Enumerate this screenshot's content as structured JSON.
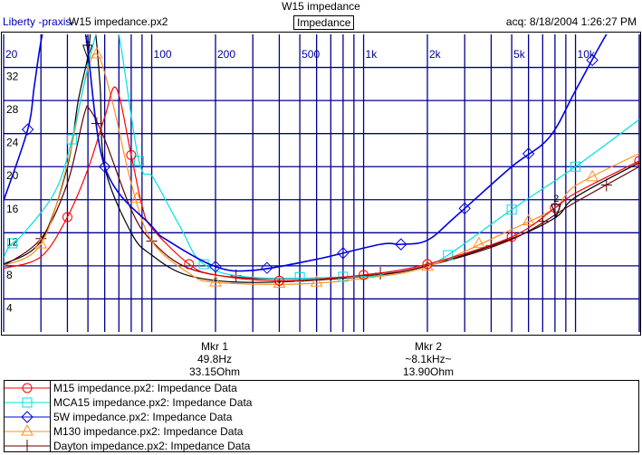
{
  "header": {
    "title": "W15 impedance",
    "brand": "Liberty -praxis-",
    "file": "W15 impedance.px2",
    "mode": "Impedance",
    "acq": "acq: 8/18/2004 1:26:27 PM"
  },
  "markers": [
    {
      "label": "Mkr 1",
      "freq": "49.8Hz",
      "value": "33.15Ohm",
      "f": 49.8,
      "ohm": 33.15,
      "id": "1"
    },
    {
      "label": "Mkr 2",
      "freq": "~8.1kHz~",
      "value": "13.90Ohm",
      "f": 8100,
      "ohm": 13.9,
      "id": "2"
    }
  ],
  "chart_data": {
    "type": "line",
    "title": "W15 impedance",
    "xscale": "log",
    "xlim": [
      20,
      20000
    ],
    "ylim": [
      0,
      36
    ],
    "x_ticks": [
      {
        "v": 20,
        "t": "20"
      },
      {
        "v": 100,
        "t": "100"
      },
      {
        "v": 200,
        "t": "200"
      },
      {
        "v": 500,
        "t": "500"
      },
      {
        "v": 1000,
        "t": "1k"
      },
      {
        "v": 2000,
        "t": "2k"
      },
      {
        "v": 5000,
        "t": "5k"
      },
      {
        "v": 10000,
        "t": "10k"
      }
    ],
    "y_ticks": [
      {
        "v": 4,
        "t": "4"
      },
      {
        "v": 8,
        "t": "8"
      },
      {
        "v": 12,
        "t": "12"
      },
      {
        "v": 16,
        "t": "16"
      },
      {
        "v": 20,
        "t": "20"
      },
      {
        "v": 24,
        "t": "24"
      },
      {
        "v": 28,
        "t": "28"
      },
      {
        "v": 32,
        "t": "32"
      }
    ],
    "grid": true,
    "series": [
      {
        "name": "M15 impedance.px2:  Impedance Data",
        "color": "#ff0000",
        "marker": "circle",
        "x": [
          20,
          30,
          40,
          50,
          60,
          68,
          80,
          90,
          100,
          150,
          200,
          400,
          1000,
          2000,
          5000,
          8000,
          10000,
          20000
        ],
        "y": [
          7.7,
          9.1,
          13.9,
          19.7,
          26,
          29.5,
          21.4,
          15.3,
          12.6,
          8.2,
          6.9,
          6.2,
          6.9,
          8.2,
          11.5,
          15,
          16.8,
          20.7
        ],
        "marks": [
          40,
          80,
          150,
          400,
          1000,
          2000,
          5000,
          8000,
          20000
        ]
      },
      {
        "name": "MCA15 impedance.px2:  Impedance Data",
        "color": "#00e0e0",
        "marker": "square",
        "x": [
          20,
          21.5,
          25,
          35,
          42,
          52,
          62,
          70,
          87,
          102,
          137,
          176,
          300,
          1000,
          1300,
          2000,
          2500,
          5000,
          10000,
          20000
        ],
        "y": [
          9,
          10.5,
          12,
          17,
          23.3,
          34,
          40,
          36,
          20.7,
          18.6,
          12.6,
          8.2,
          6.6,
          6.7,
          7.2,
          8.2,
          9.3,
          14.8,
          20,
          25.7
        ],
        "marks": [
          22,
          42,
          87,
          176,
          500,
          800,
          2500,
          5000,
          10000
        ]
      },
      {
        "name": "5W impedance.px2:  Impedance Data",
        "color": "#0000e0",
        "marker": "diamond",
        "x": [
          20,
          26,
          28,
          31,
          38,
          48,
          60,
          100,
          120,
          200,
          300,
          600,
          1200,
          1500,
          2000,
          2700,
          5000,
          7500,
          10000,
          14000,
          20000
        ],
        "y": [
          15.9,
          24.5,
          30,
          37,
          45,
          37,
          20,
          12.8,
          11,
          7.9,
          7.45,
          8.8,
          10.6,
          10.6,
          11.1,
          13.9,
          20,
          23.5,
          29.2,
          36,
          42
        ],
        "marks": [
          26,
          60,
          200,
          350,
          800,
          1500,
          3000,
          6000,
          12000
        ]
      },
      {
        "name": "M130 impedance.px2:  Impedance Data",
        "color": "#ff9020",
        "marker": "triangle",
        "x": [
          20,
          30,
          40,
          48,
          55,
          65,
          80,
          100,
          150,
          200,
          500,
          1000,
          2000,
          5000,
          8000,
          10000,
          20000
        ],
        "y": [
          8,
          10.6,
          20.3,
          30,
          33.6,
          28,
          18,
          11,
          7.1,
          6,
          5.8,
          6.5,
          7.9,
          12.4,
          15,
          17.7,
          21.6
        ],
        "marks": [
          30,
          55,
          85,
          200,
          400,
          600,
          2000,
          3500,
          6000,
          12000
        ]
      },
      {
        "name": "Dayton impedance.px2:  Impedance Data",
        "color": "#600000",
        "marker": "plus",
        "x": [
          20,
          30,
          40,
          48,
          51,
          60,
          80,
          100,
          150,
          300,
          1000,
          2000,
          5000,
          10000,
          20000
        ],
        "y": [
          8,
          11.3,
          18,
          26.3,
          26.9,
          23.3,
          14.8,
          11,
          7.7,
          6.5,
          6.8,
          8,
          11.2,
          15.7,
          20
        ],
        "marks": [
          30,
          55,
          100,
          250,
          1200,
          4000,
          7000,
          14000
        ]
      },
      {
        "name": "",
        "color": "#000000",
        "marker": "none",
        "x": [
          20,
          30,
          40,
          45,
          49.8,
          53,
          57,
          60,
          80,
          100,
          150,
          300,
          1000,
          2000,
          5000,
          8100,
          10000,
          20000
        ],
        "y": [
          8.2,
          11,
          20,
          28,
          33.15,
          38,
          30,
          20,
          12,
          9.3,
          6.8,
          6,
          6.7,
          8,
          11.3,
          13.9,
          16.3,
          20.5
        ],
        "marks": []
      }
    ]
  }
}
